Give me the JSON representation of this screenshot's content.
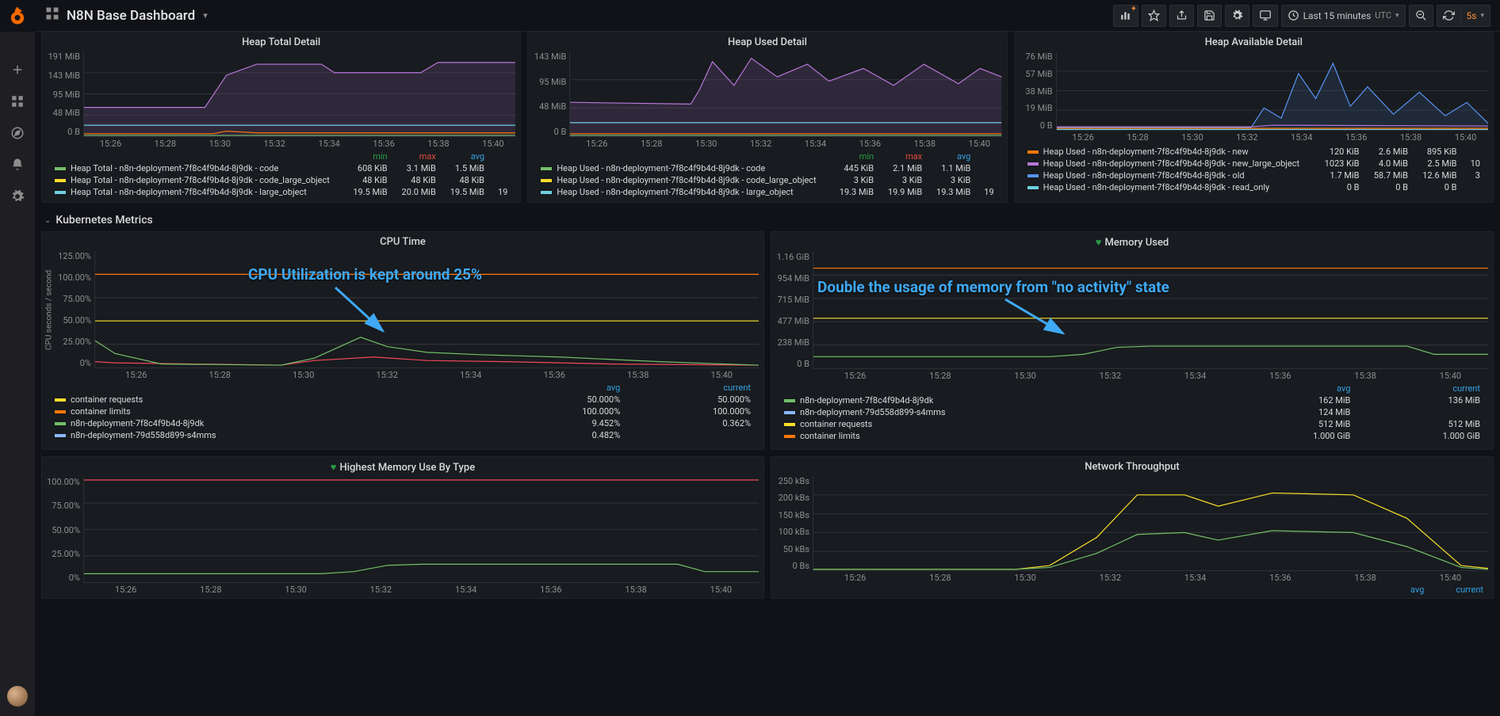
{
  "header": {
    "title": "N8N Base Dashboard",
    "timerange": "Last 15 minutes",
    "tz": "UTC",
    "refresh": "5s"
  },
  "sidebar_icons": [
    "plus",
    "apps",
    "compass",
    "bell",
    "gear"
  ],
  "colors": {
    "bg": "#111217",
    "panel": "#181b1f",
    "grid": "#2c2f34",
    "text_dim": "#8e8e8e",
    "green": "#73bf69",
    "yellow": "#fade2a",
    "orange": "#ff780a",
    "red": "#f2495c",
    "blue": "#5794f2",
    "purple": "#b877d9",
    "teal": "#6ed0e0"
  },
  "row1_xticks": [
    "15:26",
    "15:28",
    "15:30",
    "15:32",
    "15:34",
    "15:36",
    "15:38",
    "15:40"
  ],
  "panels": {
    "heap_total": {
      "title": "Heap Total Detail",
      "yticks": [
        "191 MiB",
        "143 MiB",
        "95 MiB",
        "48 MiB",
        "0 B"
      ],
      "headers": [
        "min",
        "max",
        "avg",
        ""
      ],
      "series": [
        {
          "name": "Heap Total - n8n-deployment-7f8c4f9b4d-8j9dk - code",
          "color": "#73bf69",
          "min": "608 KiB",
          "max": "3.1 MiB",
          "avg": "1.5 MiB",
          "cur": ""
        },
        {
          "name": "Heap Total - n8n-deployment-7f8c4f9b4d-8j9dk - code_large_object",
          "color": "#fade2a",
          "min": "48 KiB",
          "max": "48 KiB",
          "avg": "48 KiB",
          "cur": ""
        },
        {
          "name": "Heap Total - n8n-deployment-7f8c4f9b4d-8j9dk - large_object",
          "color": "#6ed0e0",
          "min": "19.5 MiB",
          "max": "20.0 MiB",
          "avg": "19.5 MiB",
          "cur": "19"
        }
      ],
      "lines": [
        {
          "color": "#b877d9",
          "fill": 0.15,
          "pts": [
            [
              0,
              0.34
            ],
            [
              0.28,
              0.34
            ],
            [
              0.33,
              0.72
            ],
            [
              0.4,
              0.85
            ],
            [
              0.55,
              0.85
            ],
            [
              0.58,
              0.75
            ],
            [
              0.78,
              0.75
            ],
            [
              0.82,
              0.87
            ],
            [
              1,
              0.87
            ]
          ]
        },
        {
          "color": "#6ed0e0",
          "fill": 0,
          "pts": [
            [
              0,
              0.13
            ],
            [
              1,
              0.13
            ]
          ]
        },
        {
          "color": "#ff780a",
          "fill": 0,
          "pts": [
            [
              0,
              0.03
            ],
            [
              0.3,
              0.03
            ],
            [
              0.33,
              0.06
            ],
            [
              0.4,
              0.04
            ],
            [
              1,
              0.04
            ]
          ]
        },
        {
          "color": "#73bf69",
          "fill": 0,
          "pts": [
            [
              0,
              0.01
            ],
            [
              1,
              0.01
            ]
          ]
        }
      ]
    },
    "heap_used": {
      "title": "Heap Used Detail",
      "yticks": [
        "143 MiB",
        "95 MiB",
        "48 MiB",
        "0 B"
      ],
      "headers": [
        "min",
        "max",
        "avg",
        ""
      ],
      "series": [
        {
          "name": "Heap Used - n8n-deployment-7f8c4f9b4d-8j9dk - code",
          "color": "#73bf69",
          "min": "445 KiB",
          "max": "2.1 MiB",
          "avg": "1.1 MiB",
          "cur": ""
        },
        {
          "name": "Heap Used - n8n-deployment-7f8c4f9b4d-8j9dk - code_large_object",
          "color": "#fade2a",
          "min": "3 KiB",
          "max": "3 KiB",
          "avg": "3 KiB",
          "cur": ""
        },
        {
          "name": "Heap Used - n8n-deployment-7f8c4f9b4d-8j9dk - large_object",
          "color": "#6ed0e0",
          "min": "19.3 MiB",
          "max": "19.9 MiB",
          "avg": "19.3 MiB",
          "cur": "19"
        }
      ],
      "lines": [
        {
          "color": "#b877d9",
          "fill": 0.15,
          "pts": [
            [
              0,
              0.4
            ],
            [
              0.28,
              0.38
            ],
            [
              0.3,
              0.55
            ],
            [
              0.33,
              0.88
            ],
            [
              0.38,
              0.6
            ],
            [
              0.42,
              0.92
            ],
            [
              0.48,
              0.7
            ],
            [
              0.55,
              0.85
            ],
            [
              0.6,
              0.65
            ],
            [
              0.68,
              0.8
            ],
            [
              0.75,
              0.6
            ],
            [
              0.82,
              0.85
            ],
            [
              0.9,
              0.62
            ],
            [
              0.95,
              0.8
            ],
            [
              1,
              0.7
            ]
          ]
        },
        {
          "color": "#6ed0e0",
          "fill": 0,
          "pts": [
            [
              0,
              0.16
            ],
            [
              1,
              0.16
            ]
          ]
        },
        {
          "color": "#ff780a",
          "fill": 0,
          "pts": [
            [
              0,
              0.03
            ],
            [
              1,
              0.03
            ]
          ]
        },
        {
          "color": "#73bf69",
          "fill": 0,
          "pts": [
            [
              0,
              0.01
            ],
            [
              1,
              0.01
            ]
          ]
        }
      ]
    },
    "heap_avail": {
      "title": "Heap Available Detail",
      "yticks": [
        "76 MiB",
        "57 MiB",
        "38 MiB",
        "19 MiB",
        "0 B"
      ],
      "headers": [
        "",
        "",
        "",
        ""
      ],
      "series": [
        {
          "name": "Heap Used - n8n-deployment-7f8c4f9b4d-8j9dk - new",
          "color": "#ff780a",
          "min": "120 KiB",
          "max": "2.6 MiB",
          "avg": "895 KiB",
          "cur": ""
        },
        {
          "name": "Heap Used - n8n-deployment-7f8c4f9b4d-8j9dk - new_large_object",
          "color": "#b877d9",
          "min": "1023 KiB",
          "max": "4.0 MiB",
          "avg": "2.5 MiB",
          "cur": "10"
        },
        {
          "name": "Heap Used - n8n-deployment-7f8c4f9b4d-8j9dk - old",
          "color": "#5794f2",
          "min": "1.7 MiB",
          "max": "58.7 MiB",
          "avg": "12.6 MiB",
          "cur": "3"
        },
        {
          "name": "Heap Used - n8n-deployment-7f8c4f9b4d-8j9dk - read_only",
          "color": "#6ed0e0",
          "min": "0 B",
          "max": "0 B",
          "avg": "0 B",
          "cur": ""
        }
      ],
      "lines": [
        {
          "color": "#5794f2",
          "fill": 0.12,
          "pts": [
            [
              0,
              0.03
            ],
            [
              0.45,
              0.03
            ],
            [
              0.48,
              0.28
            ],
            [
              0.52,
              0.15
            ],
            [
              0.56,
              0.72
            ],
            [
              0.6,
              0.4
            ],
            [
              0.64,
              0.85
            ],
            [
              0.68,
              0.3
            ],
            [
              0.72,
              0.55
            ],
            [
              0.78,
              0.2
            ],
            [
              0.84,
              0.48
            ],
            [
              0.9,
              0.18
            ],
            [
              0.95,
              0.35
            ],
            [
              1,
              0.08
            ]
          ]
        },
        {
          "color": "#b877d9",
          "fill": 0,
          "pts": [
            [
              0,
              0.04
            ],
            [
              0.45,
              0.04
            ],
            [
              0.5,
              0.06
            ],
            [
              1,
              0.05
            ]
          ]
        },
        {
          "color": "#ff780a",
          "fill": 0,
          "pts": [
            [
              0,
              0.02
            ],
            [
              1,
              0.02
            ]
          ]
        },
        {
          "color": "#6ed0e0",
          "fill": 0,
          "pts": [
            [
              0,
              0.005
            ],
            [
              1,
              0.005
            ]
          ]
        }
      ]
    }
  },
  "section": "Kubernetes Metrics",
  "row2_xticks": [
    "15:26",
    "15:28",
    "15:30",
    "15:32",
    "15:34",
    "15:36",
    "15:38",
    "15:40"
  ],
  "cpu": {
    "title": "CPU Time",
    "ylabel": "CPU seconds / second",
    "yticks": [
      "125.00%",
      "100.00%",
      "75.00%",
      "50.00%",
      "25.00%",
      "0%"
    ],
    "annotation": "CPU Utilization is kept around 25%",
    "series": [
      {
        "name": "container requests",
        "color": "#fade2a",
        "avg": "50.000%",
        "cur": "50.000%"
      },
      {
        "name": "container limits",
        "color": "#ff780a",
        "avg": "100.000%",
        "cur": "100.000%"
      },
      {
        "name": "n8n-deployment-7f8c4f9b4d-8j9dk",
        "color": "#73bf69",
        "avg": "9.452%",
        "cur": "0.362%"
      },
      {
        "name": "n8n-deployment-79d558d899-s4mms",
        "color": "#8ab8ff",
        "avg": "0.482%",
        "cur": ""
      }
    ],
    "lines": [
      {
        "color": "#ff780a",
        "pts": [
          [
            0,
            0.8
          ],
          [
            1,
            0.8
          ]
        ]
      },
      {
        "color": "#fade2a",
        "pts": [
          [
            0,
            0.4
          ],
          [
            1,
            0.4
          ]
        ]
      },
      {
        "color": "#f2495c",
        "pts": [
          [
            0,
            0.05
          ],
          [
            0.03,
            0.04
          ],
          [
            0.28,
            0.02
          ],
          [
            0.33,
            0.06
          ],
          [
            0.42,
            0.09
          ],
          [
            0.5,
            0.06
          ],
          [
            0.62,
            0.05
          ],
          [
            0.78,
            0.03
          ],
          [
            1,
            0.02
          ]
        ]
      },
      {
        "color": "#73bf69",
        "pts": [
          [
            0,
            0.23
          ],
          [
            0.03,
            0.12
          ],
          [
            0.1,
            0.03
          ],
          [
            0.28,
            0.02
          ],
          [
            0.33,
            0.08
          ],
          [
            0.4,
            0.26
          ],
          [
            0.44,
            0.18
          ],
          [
            0.5,
            0.13
          ],
          [
            0.58,
            0.11
          ],
          [
            0.7,
            0.09
          ],
          [
            0.85,
            0.05
          ],
          [
            1,
            0.02
          ]
        ]
      }
    ]
  },
  "mem": {
    "title": "Memory Used",
    "yticks": [
      "1.16 GiB",
      "954 MiB",
      "715 MiB",
      "477 MiB",
      "238 MiB",
      "0 B"
    ],
    "annotation": "Double the usage of memory from \"no activity\" state",
    "series": [
      {
        "name": "n8n-deployment-7f8c4f9b4d-8j9dk",
        "color": "#73bf69",
        "avg": "162 MiB",
        "cur": "136 MiB"
      },
      {
        "name": "n8n-deployment-79d558d899-s4mms",
        "color": "#8ab8ff",
        "avg": "124 MiB",
        "cur": ""
      },
      {
        "name": "container requests",
        "color": "#fade2a",
        "avg": "512 MiB",
        "cur": "512 MiB"
      },
      {
        "name": "container limits",
        "color": "#ff780a",
        "avg": "1.000 GiB",
        "cur": "1.000 GiB"
      }
    ],
    "lines": [
      {
        "color": "#ff780a",
        "pts": [
          [
            0,
            0.86
          ],
          [
            1,
            0.86
          ]
        ]
      },
      {
        "color": "#fade2a",
        "pts": [
          [
            0,
            0.43
          ],
          [
            1,
            0.43
          ]
        ]
      },
      {
        "color": "#73bf69",
        "pts": [
          [
            0,
            0.1
          ],
          [
            0.03,
            0.1
          ],
          [
            0.35,
            0.1
          ],
          [
            0.4,
            0.12
          ],
          [
            0.45,
            0.18
          ],
          [
            0.5,
            0.19
          ],
          [
            0.88,
            0.19
          ],
          [
            0.92,
            0.12
          ],
          [
            1,
            0.12
          ]
        ]
      }
    ]
  },
  "row3_xticks": [
    "15:26",
    "15:28",
    "15:30",
    "15:32",
    "15:34",
    "15:36",
    "15:38",
    "15:40"
  ],
  "memtype": {
    "title": "Highest Memory Use By Type",
    "yticks": [
      "100.00%",
      "75.00%",
      "50.00%",
      "25.00%",
      "0%"
    ],
    "lines": [
      {
        "color": "#f2495c",
        "pts": [
          [
            0,
            0.97
          ],
          [
            1,
            0.97
          ]
        ]
      },
      {
        "color": "#73bf69",
        "pts": [
          [
            0,
            0.08
          ],
          [
            0.35,
            0.08
          ],
          [
            0.4,
            0.1
          ],
          [
            0.45,
            0.16
          ],
          [
            0.5,
            0.17
          ],
          [
            0.88,
            0.17
          ],
          [
            0.92,
            0.1
          ],
          [
            1,
            0.1
          ]
        ]
      }
    ]
  },
  "net": {
    "title": "Network Throughput",
    "yticks": [
      "250 kBs",
      "200 kBs",
      "150 kBs",
      "100 kBs",
      "50 kBs",
      "0 Bs"
    ],
    "lines": [
      {
        "color": "#fade2a",
        "pts": [
          [
            0,
            0.01
          ],
          [
            0.3,
            0.01
          ],
          [
            0.35,
            0.05
          ],
          [
            0.42,
            0.35
          ],
          [
            0.48,
            0.8
          ],
          [
            0.55,
            0.8
          ],
          [
            0.6,
            0.68
          ],
          [
            0.68,
            0.82
          ],
          [
            0.8,
            0.8
          ],
          [
            0.88,
            0.55
          ],
          [
            0.96,
            0.05
          ],
          [
            1,
            0.02
          ]
        ]
      },
      {
        "color": "#73bf69",
        "pts": [
          [
            0,
            0.01
          ],
          [
            0.3,
            0.01
          ],
          [
            0.35,
            0.03
          ],
          [
            0.42,
            0.18
          ],
          [
            0.48,
            0.38
          ],
          [
            0.55,
            0.4
          ],
          [
            0.6,
            0.32
          ],
          [
            0.68,
            0.42
          ],
          [
            0.8,
            0.4
          ],
          [
            0.88,
            0.25
          ],
          [
            0.96,
            0.03
          ],
          [
            1,
            0.01
          ]
        ]
      }
    ]
  }
}
